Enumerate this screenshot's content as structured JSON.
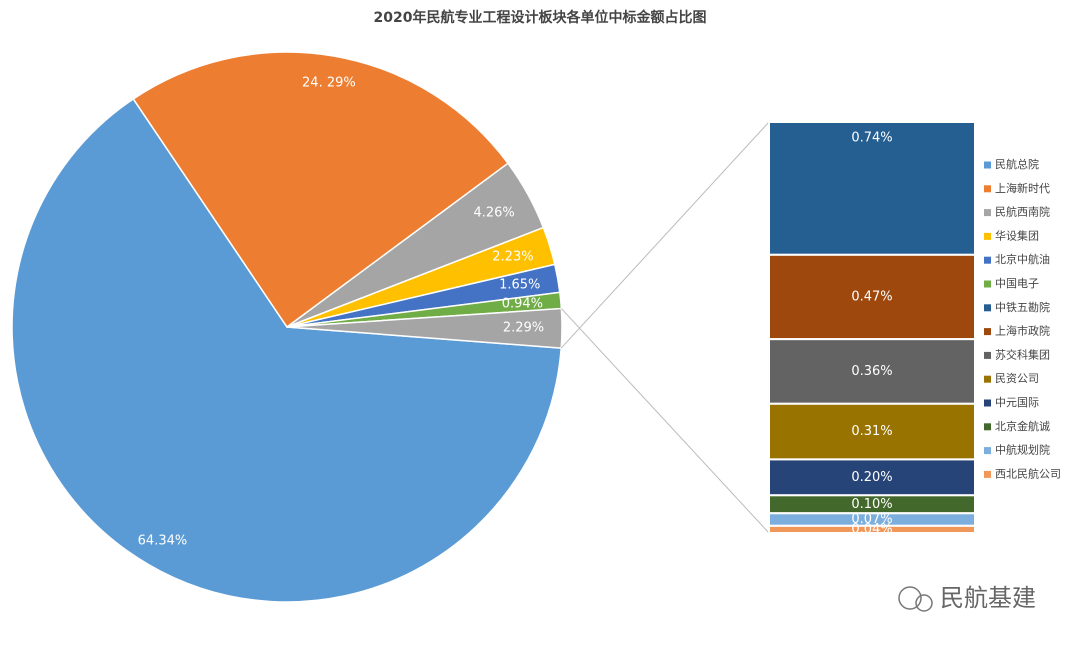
{
  "chart_data": {
    "type": "pie",
    "title": "2020年民航专业工程设计板块各单位中标金额占比图",
    "categories": [
      "民航总院",
      "上海新时代",
      "民航西南院",
      "华设集团",
      "北京中航油",
      "中国电子",
      null
    ],
    "values": [
      64.34,
      24.29,
      4.26,
      2.23,
      1.65,
      0.94,
      2.29
    ],
    "value_labels": [
      "64.34%",
      "24. 29%",
      "4.26%",
      "2.23%",
      "1.65%",
      "0.94%",
      "2.29%"
    ],
    "colors": [
      "#5b9bd5",
      "#ed7d31",
      "#a5a5a5",
      "#ffc000",
      "#4472c4",
      "#70ad47",
      "#a5a5a5"
    ],
    "bar": {
      "categories": [
        "中铁五勘院",
        "上海市政院",
        "苏交科集团",
        "民资公司",
        "中元国际",
        "北京金航诚",
        "中航规划院",
        "西北民航公司"
      ],
      "values": [
        0.74,
        0.47,
        0.36,
        0.31,
        0.2,
        0.1,
        0.07,
        0.04
      ],
      "value_labels": [
        "0.74%",
        "0.47%",
        "0.36%",
        "0.31%",
        "0.20%",
        "0.10%",
        "0.07%",
        "0.04%"
      ],
      "colors": [
        "#255e91",
        "#9e480e",
        "#636363",
        "#997300",
        "#264478",
        "#43682b",
        "#7cafdd",
        "#f1975a"
      ]
    },
    "watermark": "民航基建"
  }
}
